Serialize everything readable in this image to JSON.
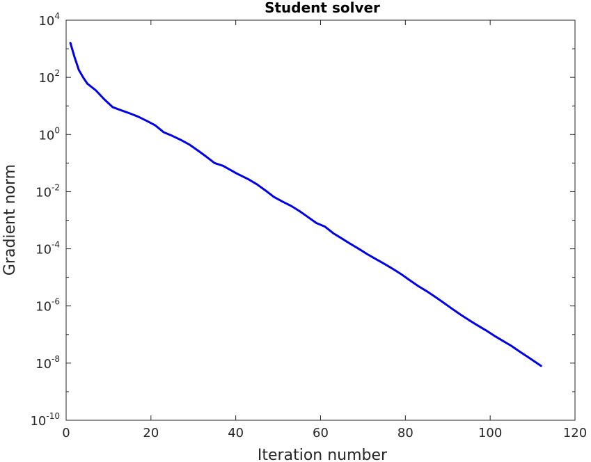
{
  "chart_data": {
    "type": "line",
    "title": "Student solver",
    "xlabel": "Iteration number",
    "ylabel": "Gradient norm",
    "xlim": [
      0,
      120
    ],
    "ylim": [
      1e-10,
      10000.0
    ],
    "yscale": "log",
    "xticks": [
      0,
      20,
      40,
      60,
      80,
      100,
      120
    ],
    "yticks": [
      {
        "base": "10",
        "exp": "-10",
        "value": 1e-10
      },
      {
        "base": "10",
        "exp": "-8",
        "value": 1e-08
      },
      {
        "base": "10",
        "exp": "-6",
        "value": 1e-06
      },
      {
        "base": "10",
        "exp": "-4",
        "value": 0.0001
      },
      {
        "base": "10",
        "exp": "-2",
        "value": 0.01
      },
      {
        "base": "10",
        "exp": "0",
        "value": 1
      },
      {
        "base": "10",
        "exp": "2",
        "value": 100.0
      },
      {
        "base": "10",
        "exp": "4",
        "value": 10000.0
      }
    ],
    "grid": false,
    "line_color": "#0000dd",
    "series": [
      {
        "x": [
          1,
          2,
          3,
          4,
          5,
          7,
          9,
          11,
          13,
          15,
          17,
          19,
          21,
          23,
          25,
          27,
          29,
          31,
          33,
          35,
          37,
          40,
          43,
          45,
          47,
          49,
          51,
          53,
          55,
          57,
          59,
          61,
          63,
          65,
          67,
          69,
          71,
          73,
          75,
          77,
          79,
          81,
          83,
          85,
          87,
          89,
          91,
          93,
          95,
          97,
          99,
          101,
          103,
          105,
          107,
          109,
          112
        ],
        "y": [
          1600,
          500,
          180,
          100,
          60,
          35,
          17,
          9,
          7,
          5.5,
          4.2,
          3,
          2.1,
          1.2,
          0.9,
          0.65,
          0.45,
          0.28,
          0.17,
          0.1,
          0.08,
          0.045,
          0.027,
          0.018,
          0.011,
          0.0065,
          0.0045,
          0.0032,
          0.0021,
          0.0013,
          0.0008,
          0.0006,
          0.00035,
          0.00023,
          0.00015,
          0.0001,
          6.5e-05,
          4.4e-05,
          3e-05,
          2e-05,
          1.3e-05,
          8e-06,
          5e-06,
          3.3e-06,
          2.1e-06,
          1.3e-06,
          8e-07,
          5e-07,
          3.2e-07,
          2.1e-07,
          1.4e-07,
          9e-08,
          6e-08,
          4e-08,
          2.5e-08,
          1.6e-08,
          8e-09
        ]
      }
    ]
  }
}
